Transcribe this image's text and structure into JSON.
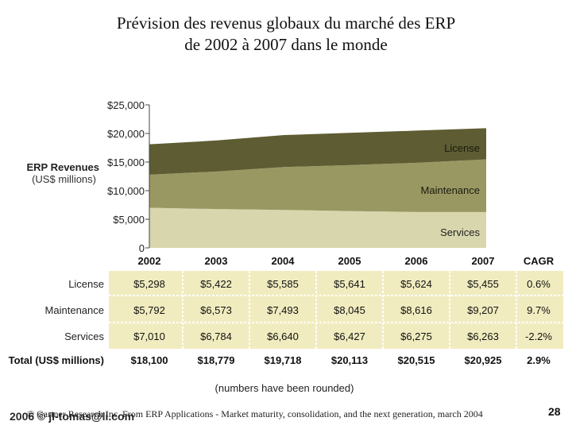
{
  "slide": {
    "title_line1": "Prévision des revenus globaux du marché des ERP",
    "title_line2": "de 2002 à 2007 dans le monde",
    "footer_source": "© Gartner Research Inc. From ERP Applications - Market maturity, consolidation, and the next generation, march 2004",
    "footer_copyright": "2006 © jl-tomas@li.com",
    "page_number": "28"
  },
  "colors": {
    "license": "#5e5c32",
    "maintenance": "#9a9862",
    "services": "#d8d6ad",
    "table_bg": "#f1ecbf"
  },
  "chart_data": {
    "type": "area",
    "stacked": true,
    "title": "ERP Revenues",
    "ylabel": "ERP Revenues",
    "ylabel_unit": "(US$ millions)",
    "ylim": [
      0,
      25000
    ],
    "yticks": [
      "0",
      "$5,000",
      "$10,000",
      "$15,000",
      "$20,000",
      "$25,000"
    ],
    "ytick_values": [
      0,
      5000,
      10000,
      15000,
      20000,
      25000
    ],
    "categories": [
      "2002",
      "2003",
      "2004",
      "2005",
      "2006",
      "2007"
    ],
    "series": [
      {
        "name": "Services",
        "values": [
          7010,
          6784,
          6640,
          6427,
          6275,
          6263
        ]
      },
      {
        "name": "Maintenance",
        "values": [
          5792,
          6573,
          7493,
          8045,
          8616,
          9207
        ]
      },
      {
        "name": "License",
        "values": [
          5298,
          5422,
          5585,
          5641,
          5624,
          5455
        ]
      }
    ],
    "table": {
      "cagr_header": "CAGR",
      "rows": [
        {
          "label": "License",
          "cells": [
            "$5,298",
            "$5,422",
            "$5,585",
            "$5,641",
            "$5,624",
            "$5,455"
          ],
          "cagr": "0.6%"
        },
        {
          "label": "Maintenance",
          "cells": [
            "$5,792",
            "$6,573",
            "$7,493",
            "$8,045",
            "$8,616",
            "$9,207"
          ],
          "cagr": "9.7%"
        },
        {
          "label": "Services",
          "cells": [
            "$7,010",
            "$6,784",
            "$6,640",
            "$6,427",
            "$6,275",
            "$6,263"
          ],
          "cagr": "-2.2%"
        }
      ],
      "total": {
        "label": "Total (US$ millions)",
        "cells": [
          "$18,100",
          "$18,779",
          "$19,718",
          "$20,113",
          "$20,515",
          "$20,925"
        ],
        "cagr": "2.9%"
      }
    },
    "note": "(numbers have been rounded)"
  }
}
